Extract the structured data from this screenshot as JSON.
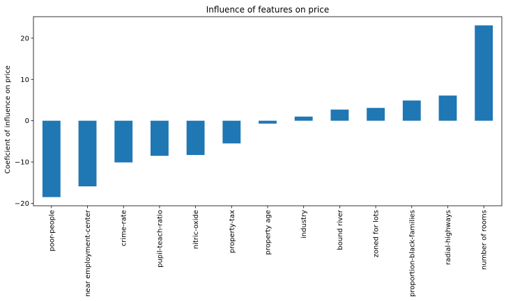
{
  "chart_data": {
    "type": "bar",
    "title": "Influence of features on price",
    "xlabel": "",
    "ylabel": "Coeficient of influence on price",
    "categories": [
      "poor-people",
      "near employment-center",
      "crime-rate",
      "pupil-teach-ratio",
      "nitric-oxide",
      "property-tax",
      "property age",
      "industry",
      "bound river",
      "zoned for lots",
      "proportion-black-families",
      "radial-highways",
      "number of rooms"
    ],
    "values": [
      -18.5,
      -15.9,
      -10.1,
      -8.5,
      -8.3,
      -5.5,
      -0.7,
      1.0,
      2.7,
      3.1,
      4.9,
      6.1,
      23.1
    ],
    "ylim": [
      -20.6,
      25.2
    ],
    "yticks": [
      -20,
      -10,
      0,
      10,
      20
    ],
    "grid": false,
    "bar_color": "#1f77b4"
  }
}
